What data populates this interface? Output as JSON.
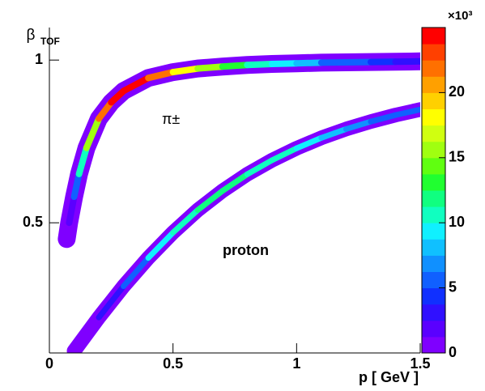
{
  "chart_data": {
    "type": "heatmap-bands",
    "x_label": "p [ GeV ]",
    "y_label": "β",
    "y_label_sub": "TOF",
    "xlim": [
      0,
      1.5
    ],
    "xticks": [
      0,
      0.5,
      1,
      1.5
    ],
    "ylim": [
      0.1,
      1.1
    ],
    "yticks": [
      0.5,
      1
    ],
    "zlim": [
      0,
      25
    ],
    "zticks": [
      0,
      5,
      10,
      15,
      20
    ],
    "z_label": "×10³",
    "palette": [
      "#7f00ff",
      "#5a00ff",
      "#3010ff",
      "#1030ff",
      "#1060ff",
      "#1090ff",
      "#10c0ff",
      "#10f0ff",
      "#10ffc0",
      "#10ff80",
      "#20ff30",
      "#60ff10",
      "#a0ff10",
      "#d0ff10",
      "#ffff00",
      "#ffd000",
      "#ffa000",
      "#ff7000",
      "#ff4000",
      "#ff0000"
    ],
    "series": [
      {
        "name": "π±",
        "x": [
          0.07,
          0.08,
          0.1,
          0.12,
          0.15,
          0.2,
          0.25,
          0.3,
          0.4,
          0.5,
          0.6,
          0.7,
          0.8,
          0.9,
          1.0,
          1.1,
          1.2,
          1.3,
          1.4,
          1.5
        ],
        "values": [
          0.45,
          0.5,
          0.58,
          0.65,
          0.73,
          0.82,
          0.87,
          0.905,
          0.945,
          0.963,
          0.974,
          0.98,
          0.985,
          0.988,
          0.99,
          0.992,
          0.993,
          0.994,
          0.995,
          0.996
        ],
        "counts": [
          1,
          2,
          5,
          10,
          16,
          22,
          25,
          25,
          22,
          18,
          15,
          13,
          11,
          9,
          8,
          6,
          5,
          4,
          3,
          2
        ]
      },
      {
        "name": "proton",
        "x": [
          0.1,
          0.2,
          0.3,
          0.4,
          0.5,
          0.6,
          0.7,
          0.8,
          0.9,
          1.0,
          1.1,
          1.2,
          1.3,
          1.4,
          1.5
        ],
        "values": [
          0.106,
          0.209,
          0.305,
          0.392,
          0.47,
          0.539,
          0.598,
          0.649,
          0.692,
          0.729,
          0.761,
          0.788,
          0.811,
          0.831,
          0.848
        ],
        "counts": [
          1,
          3,
          6,
          9,
          11,
          12,
          12,
          11,
          10,
          9,
          8,
          7,
          6,
          5,
          4
        ]
      }
    ]
  }
}
